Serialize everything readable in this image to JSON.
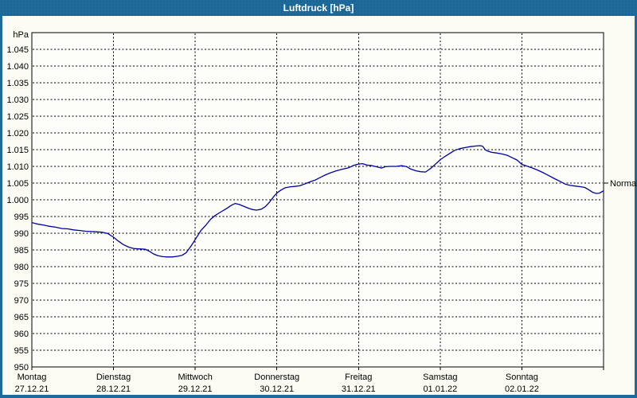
{
  "window": {
    "title": "Luftdruck [hPa]"
  },
  "colors": {
    "titlebar": "#1e6b9b",
    "frame_border": "#1e6b9b",
    "content_background": "#fcfcf5",
    "plot_background": "#fdfdfa",
    "gridline": "#000000",
    "axis": "#000000",
    "line": "#0000a0",
    "text": "#000000",
    "title_text": "#ffffff"
  },
  "chart_data": {
    "type": "line",
    "title": "Luftdruck [hPa]",
    "unit_label": "hPa",
    "ylim": [
      950,
      1050
    ],
    "ytick_step": 5,
    "grid": "dashed",
    "yticks": [
      {
        "value": 1045,
        "label": "1.045"
      },
      {
        "value": 1040,
        "label": "1.040"
      },
      {
        "value": 1035,
        "label": "1.035"
      },
      {
        "value": 1030,
        "label": "1.030"
      },
      {
        "value": 1025,
        "label": "1.025"
      },
      {
        "value": 1020,
        "label": "1.020"
      },
      {
        "value": 1015,
        "label": "1.015"
      },
      {
        "value": 1010,
        "label": "1.010"
      },
      {
        "value": 1005,
        "label": "1.005"
      },
      {
        "value": 1000,
        "label": "1.000"
      },
      {
        "value": 995,
        "label": "995"
      },
      {
        "value": 990,
        "label": "990"
      },
      {
        "value": 985,
        "label": "985"
      },
      {
        "value": 980,
        "label": "980"
      },
      {
        "value": 975,
        "label": "975"
      },
      {
        "value": 970,
        "label": "970"
      },
      {
        "value": 965,
        "label": "965"
      },
      {
        "value": 960,
        "label": "960"
      },
      {
        "value": 955,
        "label": "955"
      },
      {
        "value": 950,
        "label": "950"
      }
    ],
    "x_days": [
      {
        "name": "Montag",
        "date": "27.12.21"
      },
      {
        "name": "Dienstag",
        "date": "28.12.21"
      },
      {
        "name": "Mittwoch",
        "date": "29.12.21"
      },
      {
        "name": "Donnerstag",
        "date": "30.12.21"
      },
      {
        "name": "Freitag",
        "date": "31.12.21"
      },
      {
        "name": "Samstag",
        "date": "01.01.22"
      },
      {
        "name": "Sonntag",
        "date": "02.01.22"
      }
    ],
    "normal_marker": {
      "label": "Normal",
      "value": 1005
    },
    "series": [
      {
        "name": "Luftdruck",
        "color": "#0000a0",
        "points_days_hpa": [
          [
            0.0,
            993.2
          ],
          [
            0.08,
            992.7
          ],
          [
            0.15,
            992.4
          ],
          [
            0.21,
            992.1
          ],
          [
            0.29,
            991.8
          ],
          [
            0.37,
            991.4
          ],
          [
            0.44,
            991.3
          ],
          [
            0.51,
            991.0
          ],
          [
            0.59,
            990.8
          ],
          [
            0.66,
            990.6
          ],
          [
            0.73,
            990.5
          ],
          [
            0.8,
            990.4
          ],
          [
            0.86,
            990.3
          ],
          [
            0.93,
            989.9
          ],
          [
            1.0,
            988.8
          ],
          [
            1.05,
            987.8
          ],
          [
            1.12,
            986.6
          ],
          [
            1.19,
            985.8
          ],
          [
            1.25,
            985.4
          ],
          [
            1.32,
            985.3
          ],
          [
            1.39,
            985.2
          ],
          [
            1.44,
            984.6
          ],
          [
            1.49,
            983.8
          ],
          [
            1.54,
            983.3
          ],
          [
            1.6,
            983.0
          ],
          [
            1.66,
            982.9
          ],
          [
            1.72,
            982.9
          ],
          [
            1.78,
            983.1
          ],
          [
            1.84,
            983.4
          ],
          [
            1.89,
            984.2
          ],
          [
            1.95,
            986.2
          ],
          [
            2.01,
            988.5
          ],
          [
            2.07,
            990.8
          ],
          [
            2.13,
            992.4
          ],
          [
            2.19,
            994.2
          ],
          [
            2.25,
            995.4
          ],
          [
            2.31,
            996.3
          ],
          [
            2.38,
            997.3
          ],
          [
            2.44,
            998.3
          ],
          [
            2.49,
            998.9
          ],
          [
            2.54,
            998.6
          ],
          [
            2.59,
            998.1
          ],
          [
            2.65,
            997.5
          ],
          [
            2.7,
            997.1
          ],
          [
            2.75,
            996.9
          ],
          [
            2.81,
            997.2
          ],
          [
            2.86,
            998.0
          ],
          [
            2.91,
            999.3
          ],
          [
            2.96,
            1000.9
          ],
          [
            3.0,
            1002.0
          ],
          [
            3.05,
            1002.9
          ],
          [
            3.1,
            1003.6
          ],
          [
            3.17,
            1003.9
          ],
          [
            3.22,
            1004.0
          ],
          [
            3.28,
            1004.2
          ],
          [
            3.36,
            1004.9
          ],
          [
            3.42,
            1005.5
          ],
          [
            3.47,
            1005.9
          ],
          [
            3.51,
            1006.4
          ],
          [
            3.59,
            1007.4
          ],
          [
            3.66,
            1008.1
          ],
          [
            3.73,
            1008.7
          ],
          [
            3.81,
            1009.2
          ],
          [
            3.88,
            1009.6
          ],
          [
            3.94,
            1010.3
          ],
          [
            4.0,
            1010.7
          ],
          [
            4.05,
            1010.8
          ],
          [
            4.1,
            1010.4
          ],
          [
            4.17,
            1010.2
          ],
          [
            4.23,
            1009.8
          ],
          [
            4.28,
            1009.5
          ],
          [
            4.33,
            1009.9
          ],
          [
            4.39,
            1010.0
          ],
          [
            4.46,
            1010.0
          ],
          [
            4.53,
            1010.2
          ],
          [
            4.59,
            1009.9
          ],
          [
            4.64,
            1009.2
          ],
          [
            4.7,
            1008.7
          ],
          [
            4.76,
            1008.4
          ],
          [
            4.82,
            1008.3
          ],
          [
            4.88,
            1009.3
          ],
          [
            4.93,
            1010.4
          ],
          [
            5.0,
            1012.0
          ],
          [
            5.06,
            1013.0
          ],
          [
            5.12,
            1013.9
          ],
          [
            5.17,
            1014.7
          ],
          [
            5.24,
            1015.3
          ],
          [
            5.3,
            1015.6
          ],
          [
            5.37,
            1015.9
          ],
          [
            5.44,
            1016.1
          ],
          [
            5.49,
            1016.2
          ],
          [
            5.52,
            1016.0
          ],
          [
            5.55,
            1015.0
          ],
          [
            5.58,
            1014.6
          ],
          [
            5.63,
            1014.2
          ],
          [
            5.69,
            1014.0
          ],
          [
            5.76,
            1013.7
          ],
          [
            5.82,
            1013.3
          ],
          [
            5.88,
            1012.6
          ],
          [
            5.94,
            1011.9
          ],
          [
            6.0,
            1010.6
          ],
          [
            6.06,
            1010.1
          ],
          [
            6.13,
            1009.5
          ],
          [
            6.2,
            1008.8
          ],
          [
            6.27,
            1008.0
          ],
          [
            6.34,
            1007.1
          ],
          [
            6.4,
            1006.3
          ],
          [
            6.47,
            1005.5
          ],
          [
            6.53,
            1004.7
          ],
          [
            6.59,
            1004.3
          ],
          [
            6.66,
            1004.1
          ],
          [
            6.72,
            1003.9
          ],
          [
            6.77,
            1003.7
          ],
          [
            6.82,
            1003.0
          ],
          [
            6.87,
            1002.2
          ],
          [
            6.91,
            1001.9
          ],
          [
            6.95,
            1002.0
          ],
          [
            7.0,
            1002.7
          ]
        ]
      }
    ]
  }
}
